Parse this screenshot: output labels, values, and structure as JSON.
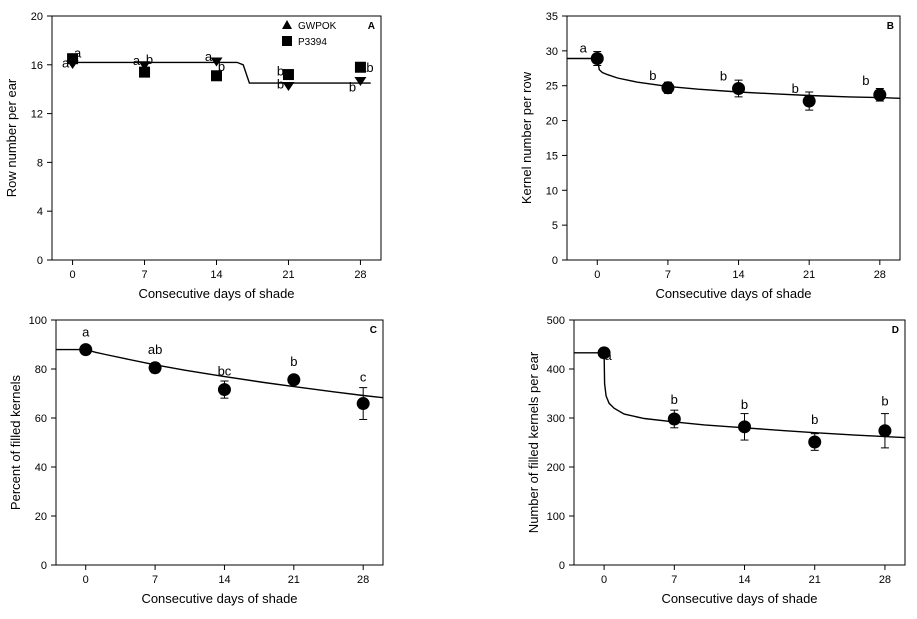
{
  "chart_data": [
    {
      "type": "scatter",
      "panel": "A",
      "xlabel": "Consecutive days of shade",
      "ylabel": "Row number per ear",
      "xticks": [
        0,
        7,
        14,
        21,
        28
      ],
      "yticks": [
        0,
        4,
        8,
        12,
        16,
        20
      ],
      "xlim": [
        -2,
        30
      ],
      "ylim": [
        0,
        20
      ],
      "legend_position": "top-right",
      "series": [
        {
          "name": "GWPOK",
          "marker": "triangle",
          "x": [
            0,
            7,
            14,
            21,
            28
          ],
          "y": [
            16.1,
            16.0,
            16.3,
            14.3,
            14.7
          ],
          "labels": [
            "a",
            "a",
            "a",
            "b",
            "b"
          ]
        },
        {
          "name": "P3394",
          "marker": "square",
          "x": [
            0,
            7,
            14,
            21,
            28
          ],
          "y": [
            16.5,
            15.4,
            15.1,
            15.2,
            15.8
          ],
          "labels": [
            "a",
            "b",
            "b",
            "b",
            "ab"
          ]
        }
      ],
      "fit": {
        "x": [
          0,
          16,
          16.6,
          17.2,
          29
        ],
        "y": [
          16.2,
          16.2,
          16.0,
          14.5,
          14.5
        ]
      }
    },
    {
      "type": "scatter",
      "panel": "B",
      "xlabel": "Consecutive days of shade",
      "ylabel": "Kernel number per row",
      "xticks": [
        0,
        7,
        14,
        21,
        28
      ],
      "yticks": [
        0,
        5,
        10,
        15,
        20,
        25,
        30,
        35
      ],
      "xlim": [
        -3,
        30
      ],
      "ylim": [
        0,
        35
      ],
      "series": [
        {
          "name": "",
          "x": [
            0,
            7,
            14,
            21,
            28
          ],
          "y": [
            28.9,
            24.7,
            24.6,
            22.8,
            23.7
          ],
          "err": [
            1.0,
            0.8,
            1.2,
            1.3,
            0.9
          ],
          "labels": [
            "a",
            "b",
            "b",
            "b",
            "b"
          ]
        }
      ],
      "fit": {
        "x": [
          -3,
          0,
          0.2,
          0.5,
          1,
          2,
          4,
          7,
          10,
          14,
          18,
          21,
          25,
          28,
          30
        ],
        "y": [
          28.9,
          28.9,
          27.3,
          26.9,
          26.6,
          26.1,
          25.5,
          24.9,
          24.5,
          24.1,
          23.8,
          23.6,
          23.4,
          23.3,
          23.2
        ]
      }
    },
    {
      "type": "scatter",
      "panel": "C",
      "xlabel": "Consecutive days of shade",
      "ylabel": "Percent of filled kernels",
      "xticks": [
        0,
        7,
        14,
        21,
        28
      ],
      "yticks": [
        0,
        20,
        40,
        60,
        80,
        100
      ],
      "xlim": [
        -3,
        30
      ],
      "ylim": [
        0,
        100
      ],
      "series": [
        {
          "name": "",
          "x": [
            0,
            7,
            14,
            21,
            28
          ],
          "y": [
            87.9,
            80.5,
            71.6,
            75.6,
            65.9
          ],
          "err": [
            1.5,
            2.0,
            3.5,
            1.8,
            6.5
          ],
          "labels": [
            "a",
            "ab",
            "bc",
            "b",
            "c"
          ]
        }
      ],
      "fit": {
        "x": [
          -3,
          0,
          1,
          2,
          4,
          7,
          10,
          14,
          18,
          21,
          25,
          28,
          30
        ],
        "y": [
          87.9,
          87.9,
          86.8,
          85.9,
          84.2,
          81.7,
          79.5,
          76.9,
          74.5,
          72.8,
          70.7,
          69.2,
          68.3
        ]
      }
    },
    {
      "type": "scatter",
      "panel": "D",
      "xlabel": "Consecutive days of shade",
      "ylabel": "Number of filled kernels per ear",
      "xticks": [
        0,
        7,
        14,
        21,
        28
      ],
      "yticks": [
        0,
        100,
        200,
        300,
        400,
        500
      ],
      "xlim": [
        -3,
        30
      ],
      "ylim": [
        0,
        500
      ],
      "series": [
        {
          "name": "",
          "x": [
            0,
            7,
            14,
            21,
            28
          ],
          "y": [
            433,
            298,
            282,
            251,
            274
          ],
          "err": [
            10,
            18,
            27,
            17,
            35
          ],
          "labels": [
            "a",
            "b",
            "b",
            "b",
            "b"
          ]
        }
      ],
      "fit": {
        "x": [
          -3,
          0,
          0.05,
          0.2,
          0.5,
          1,
          2,
          4,
          7,
          10,
          14,
          18,
          21,
          25,
          28,
          30
        ],
        "y": [
          433,
          433,
          370,
          345,
          330,
          320,
          308,
          299,
          292,
          286,
          280,
          274,
          270,
          265,
          262,
          260
        ]
      }
    }
  ]
}
